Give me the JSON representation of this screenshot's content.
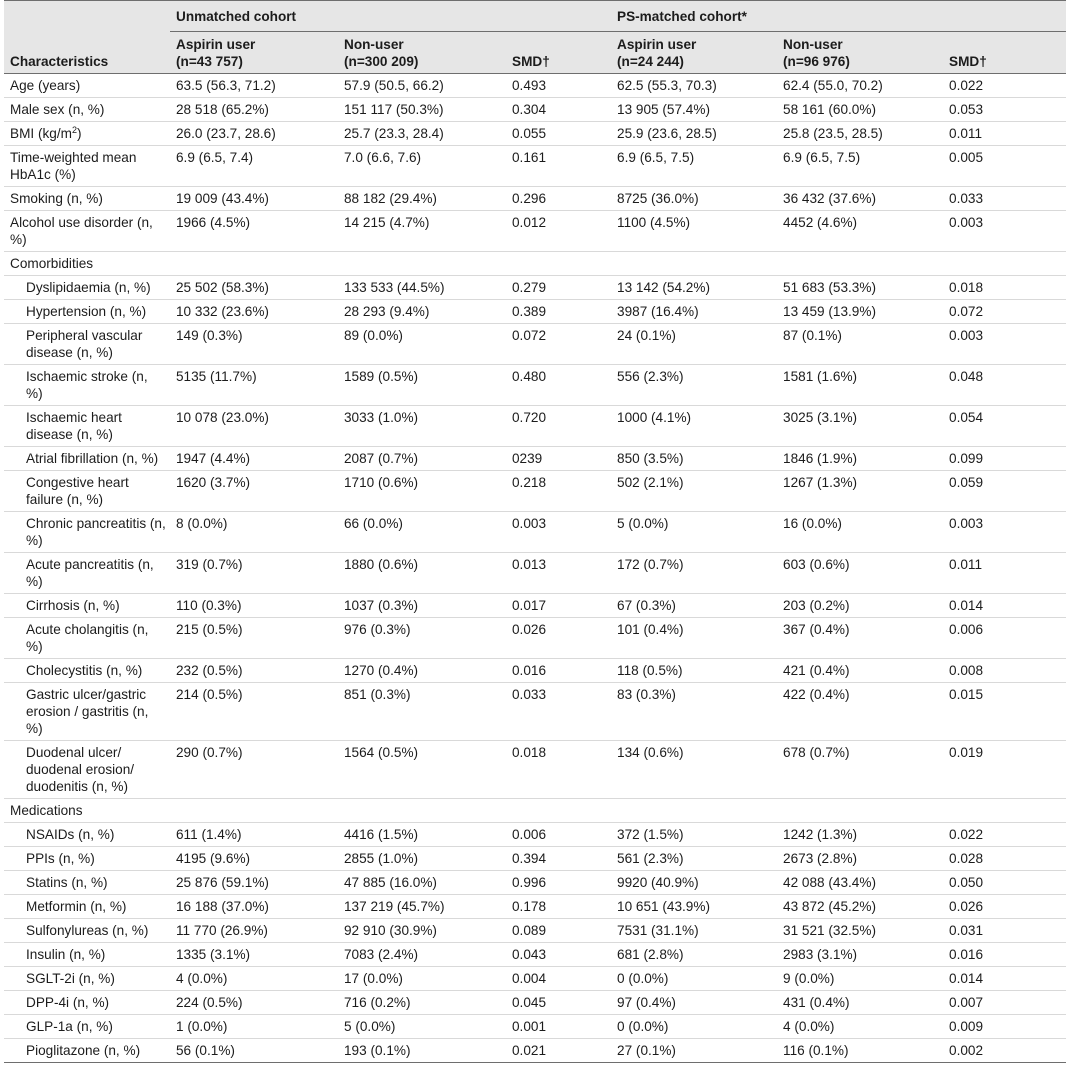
{
  "table": {
    "group_headers": {
      "unmatched": "Unmatched cohort",
      "matched": "PS-matched cohort*"
    },
    "column_headers": {
      "characteristics": "Characteristics",
      "u_aspirin_label": "Aspirin user",
      "u_aspirin_n": "(n=43 757)",
      "u_non_label": "Non-user",
      "u_non_n": "(n=300 209)",
      "u_smd": "SMD†",
      "m_aspirin_label": "Aspirin user",
      "m_aspirin_n": "(n=24 244)",
      "m_non_label": "Non-user",
      "m_non_n": "(n=96 976)",
      "m_smd": "SMD†"
    },
    "rows": [
      {
        "label": "Age (years)",
        "cells": [
          "63.5 (56.3, 71.2)",
          "57.9 (50.5, 66.2)",
          "0.493",
          "62.5 (55.3, 70.3)",
          "62.4 (55.0, 70.2)",
          "0.022"
        ]
      },
      {
        "label": "Male sex (n, %)",
        "cells": [
          "28 518 (65.2%)",
          "151 117 (50.3%)",
          "0.304",
          "13 905 (57.4%)",
          "58 161 (60.0%)",
          "0.053"
        ]
      },
      {
        "label": "BMI (kg/m",
        "label_sup": "2",
        "label_suffix": ")",
        "cells": [
          "26.0 (23.7, 28.6)",
          "25.7 (23.3, 28.4)",
          "0.055",
          "25.9 (23.6, 28.5)",
          "25.8 (23.5, 28.5)",
          "0.011"
        ]
      },
      {
        "label": "Time-weighted mean HbA1c (%)",
        "cells": [
          "6.9 (6.5, 7.4)",
          "7.0 (6.6, 7.6)",
          "0.161",
          "6.9 (6.5, 7.5)",
          "6.9 (6.5, 7.5)",
          "0.005"
        ]
      },
      {
        "label": "Smoking (n, %)",
        "cells": [
          "19 009 (43.4%)",
          "88 182 (29.4%)",
          "0.296",
          "8725 (36.0%)",
          "36 432 (37.6%)",
          "0.033"
        ]
      },
      {
        "label": "Alcohol use disorder (n, %)",
        "cells": [
          "1966 (4.5%)",
          "14 215 (4.7%)",
          "0.012",
          "1100 (4.5%)",
          "4452 (4.6%)",
          "0.003"
        ]
      }
    ],
    "comorbidities_label": "Comorbidities",
    "comorbidities": [
      {
        "label": "Dyslipidaemia (n, %)",
        "cells": [
          "25 502 (58.3%)",
          "133 533 (44.5%)",
          "0.279",
          "13 142 (54.2%)",
          "51 683 (53.3%)",
          "0.018"
        ]
      },
      {
        "label": "Hypertension (n, %)",
        "cells": [
          "10 332 (23.6%)",
          "28 293 (9.4%)",
          "0.389",
          "3987 (16.4%)",
          "13 459 (13.9%)",
          "0.072"
        ]
      },
      {
        "label": "Peripheral vascular disease (n, %)",
        "cells": [
          "149 (0.3%)",
          "89 (0.0%)",
          "0.072",
          "24 (0.1%)",
          "87 (0.1%)",
          "0.003"
        ]
      },
      {
        "label": "Ischaemic stroke (n, %)",
        "cells": [
          "5135 (11.7%)",
          "1589 (0.5%)",
          "0.480",
          "556 (2.3%)",
          "1581 (1.6%)",
          "0.048"
        ]
      },
      {
        "label": "Ischaemic heart disease (n, %)",
        "cells": [
          "10 078 (23.0%)",
          "3033 (1.0%)",
          "0.720",
          "1000 (4.1%)",
          "3025 (3.1%)",
          "0.054"
        ]
      },
      {
        "label": "Atrial fibrillation (n, %)",
        "cells": [
          "1947 (4.4%)",
          "2087 (0.7%)",
          "0239",
          "850 (3.5%)",
          "1846 (1.9%)",
          "0.099"
        ]
      },
      {
        "label": "Congestive heart failure (n, %)",
        "cells": [
          "1620 (3.7%)",
          "1710 (0.6%)",
          "0.218",
          "502 (2.1%)",
          "1267 (1.3%)",
          "0.059"
        ]
      },
      {
        "label": "Chronic pancreatitis (n, %)",
        "cells": [
          "8 (0.0%)",
          "66 (0.0%)",
          "0.003",
          "5 (0.0%)",
          "16 (0.0%)",
          "0.003"
        ]
      },
      {
        "label": "Acute pancreatitis (n, %)",
        "cells": [
          "319 (0.7%)",
          "1880 (0.6%)",
          "0.013",
          "172 (0.7%)",
          "603 (0.6%)",
          "0.011"
        ]
      },
      {
        "label": "Cirrhosis (n, %)",
        "cells": [
          "110 (0.3%)",
          "1037 (0.3%)",
          "0.017",
          "67 (0.3%)",
          "203 (0.2%)",
          "0.014"
        ]
      },
      {
        "label": "Acute cholangitis (n, %)",
        "cells": [
          "215 (0.5%)",
          "976 (0.3%)",
          "0.026",
          "101 (0.4%)",
          "367 (0.4%)",
          "0.006"
        ]
      },
      {
        "label": "Cholecystitis (n, %)",
        "cells": [
          "232 (0.5%)",
          "1270 (0.4%)",
          "0.016",
          "118 (0.5%)",
          "421 (0.4%)",
          "0.008"
        ]
      },
      {
        "label": "Gastric ulcer/gastric erosion / gastritis (n, %)",
        "cells": [
          "214 (0.5%)",
          "851 (0.3%)",
          "0.033",
          "83 (0.3%)",
          "422 (0.4%)",
          "0.015"
        ]
      },
      {
        "label": "Duodenal ulcer/ duodenal erosion/ duodenitis (n, %)",
        "cells": [
          "290 (0.7%)",
          "1564 (0.5%)",
          "0.018",
          "134 (0.6%)",
          "678 (0.7%)",
          "0.019"
        ]
      }
    ],
    "medications_label": "Medications",
    "medications": [
      {
        "label": "NSAIDs (n, %)",
        "cells": [
          "611 (1.4%)",
          "4416 (1.5%)",
          "0.006",
          "372 (1.5%)",
          "1242 (1.3%)",
          "0.022"
        ]
      },
      {
        "label": "PPIs (n, %)",
        "cells": [
          "4195 (9.6%)",
          "2855 (1.0%)",
          "0.394",
          "561 (2.3%)",
          "2673 (2.8%)",
          "0.028"
        ]
      },
      {
        "label": "Statins (n, %)",
        "cells": [
          "25 876 (59.1%)",
          "47 885 (16.0%)",
          "0.996",
          "9920 (40.9%)",
          "42 088 (43.4%)",
          "0.050"
        ]
      },
      {
        "label": "Metformin (n, %)",
        "cells": [
          "16 188 (37.0%)",
          "137 219 (45.7%)",
          "0.178",
          "10 651 (43.9%)",
          "43 872 (45.2%)",
          "0.026"
        ]
      },
      {
        "label": "Sulfonylureas (n, %)",
        "cells": [
          "11 770 (26.9%)",
          "92 910 (30.9%)",
          "0.089",
          "7531 (31.1%)",
          "31 521 (32.5%)",
          "0.031"
        ]
      },
      {
        "label": "Insulin (n, %)",
        "cells": [
          "1335 (3.1%)",
          "7083 (2.4%)",
          "0.043",
          "681 (2.8%)",
          "2983 (3.1%)",
          "0.016"
        ]
      },
      {
        "label": "SGLT-2i (n, %)",
        "cells": [
          "4 (0.0%)",
          "17 (0.0%)",
          "0.004",
          "0 (0.0%)",
          "9 (0.0%)",
          "0.014"
        ]
      },
      {
        "label": "DPP-4i (n, %)",
        "cells": [
          "224 (0.5%)",
          "716 (0.2%)",
          "0.045",
          "97 (0.4%)",
          "431 (0.4%)",
          "0.007"
        ]
      },
      {
        "label": "GLP-1a (n, %)",
        "cells": [
          "1 (0.0%)",
          "5 (0.0%)",
          "0.001",
          "0 (0.0%)",
          "4 (0.0%)",
          "0.009"
        ]
      },
      {
        "label": "Pioglitazone (n, %)",
        "cells": [
          "56 (0.1%)",
          "193 (0.1%)",
          "0.021",
          "27 (0.1%)",
          "116 (0.1%)",
          "0.002"
        ]
      }
    ]
  }
}
